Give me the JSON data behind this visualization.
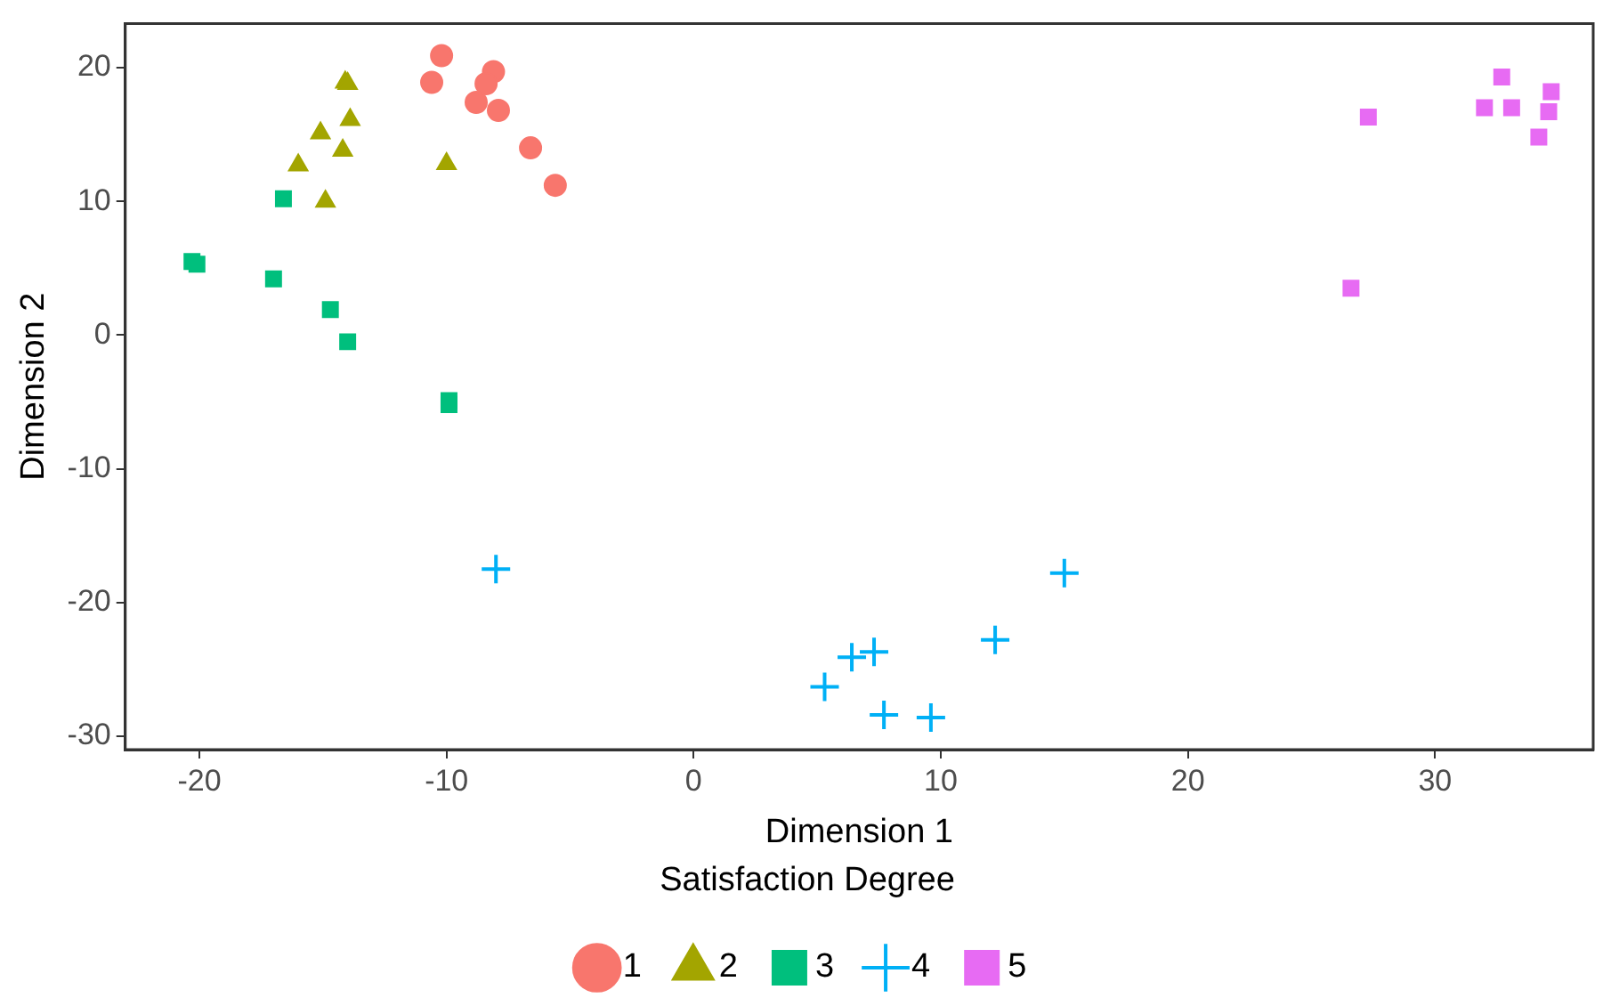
{
  "chart_data": {
    "type": "scatter",
    "xlabel": "Dimension 1",
    "ylabel": "Dimension 2",
    "legend_title": "Satisfaction Degree",
    "legend": "bottom",
    "grid": false,
    "xlim": [
      -23.0,
      36.4
    ],
    "ylim": [
      -31.0,
      23.3
    ],
    "xticks": [
      -20,
      -10,
      0,
      10,
      20,
      30
    ],
    "yticks": [
      -30,
      -20,
      -10,
      0,
      10,
      20
    ],
    "series": [
      {
        "name": "1",
        "color": "#f8766d",
        "marker": "circle",
        "x": [
          -10.2,
          -10.6,
          -8.1,
          -8.4,
          -8.8,
          -7.9,
          -6.6,
          -5.6
        ],
        "values": [
          20.9,
          18.9,
          19.7,
          18.8,
          17.4,
          16.8,
          14.0,
          11.2
        ]
      },
      {
        "name": "2",
        "color": "#a3a500",
        "marker": "triangle",
        "x": [
          -14.1,
          -14.0,
          -13.9,
          -15.1,
          -14.2,
          -16.0,
          -10.0,
          -14.9
        ],
        "values": [
          18.9,
          18.8,
          16.1,
          15.1,
          13.8,
          12.7,
          12.8,
          10.0
        ]
      },
      {
        "name": "3",
        "color": "#00bf7d",
        "marker": "square",
        "x": [
          -16.6,
          -20.3,
          -20.1,
          -17.0,
          -14.7,
          -14.0,
          -9.9,
          -9.9
        ],
        "values": [
          10.2,
          5.5,
          5.3,
          4.2,
          1.9,
          -0.5,
          -4.9,
          -5.2
        ]
      },
      {
        "name": "4",
        "color": "#00b0f6",
        "marker": "cross",
        "x": [
          -8.0,
          15.0,
          12.2,
          7.3,
          6.4,
          5.3,
          7.7,
          9.6
        ],
        "values": [
          -17.5,
          -17.8,
          -22.8,
          -23.7,
          -24.1,
          -26.3,
          -28.4,
          -28.6
        ]
      },
      {
        "name": "5",
        "color": "#e76bf3",
        "marker": "square",
        "x": [
          32.7,
          34.7,
          32.0,
          33.1,
          34.6,
          34.2,
          27.3,
          26.6
        ],
        "values": [
          19.3,
          18.2,
          17.0,
          17.0,
          16.7,
          14.8,
          16.3,
          3.5
        ]
      }
    ]
  }
}
